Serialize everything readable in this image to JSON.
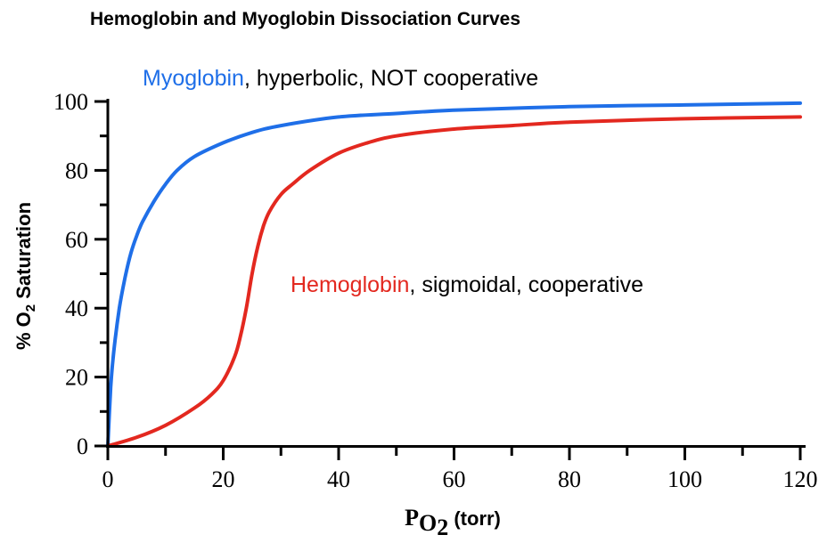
{
  "chart_data": {
    "type": "line",
    "title": "Hemoglobin and Myoglobin Dissociation Curves",
    "xlabel": {
      "base": "P",
      "sub1": "O",
      "sub2": "2",
      "suffix": " (torr)"
    },
    "ylabel": {
      "prefix": "% O",
      "sub": "2",
      "suffix": " Saturation"
    },
    "xlim": [
      0,
      120
    ],
    "ylim": [
      0,
      100
    ],
    "xticks": [
      0,
      20,
      40,
      60,
      80,
      100,
      120
    ],
    "yticks": [
      0,
      20,
      40,
      60,
      80,
      100
    ],
    "grid": false,
    "series": [
      {
        "name": "Myoglobin",
        "color": "#1f6fe8",
        "x": [
          0,
          0.5,
          1,
          2,
          3,
          4,
          5,
          6,
          8,
          10,
          12,
          15,
          20,
          25,
          30,
          40,
          50,
          60,
          80,
          100,
          120
        ],
        "y": [
          0,
          17,
          27,
          40,
          49,
          56,
          61,
          65,
          71,
          76,
          80,
          84,
          88,
          91,
          93,
          95.5,
          96.5,
          97.5,
          98.5,
          99,
          99.5
        ]
      },
      {
        "name": "Hemoglobin",
        "color": "#e3281f",
        "x": [
          0,
          5,
          10,
          15,
          18,
          20,
          22,
          23,
          24,
          25,
          26,
          27,
          28,
          30,
          32,
          35,
          40,
          45,
          50,
          60,
          70,
          80,
          100,
          120
        ],
        "y": [
          0,
          2.5,
          6,
          11,
          15,
          19,
          26,
          32,
          40,
          50,
          58,
          64,
          68,
          73,
          76,
          80,
          85,
          88,
          90,
          92,
          93,
          94,
          95,
          95.5
        ]
      }
    ],
    "annotations": [
      {
        "series": "Myoglobin",
        "label": "Myoglobin",
        "text": ", hyperbolic, NOT cooperative"
      },
      {
        "series": "Hemoglobin",
        "label": "Hemoglobin",
        "text": ", sigmoidal, cooperative"
      }
    ]
  }
}
